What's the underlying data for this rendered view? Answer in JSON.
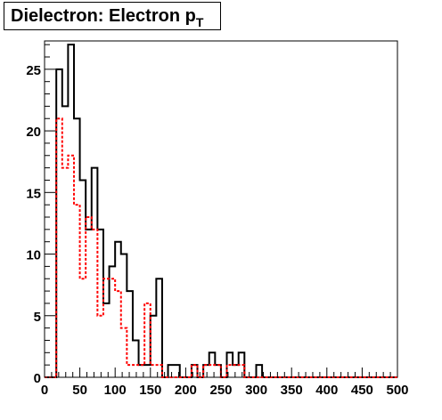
{
  "chart_data": {
    "type": "histogram",
    "title": "Dielectron: Electron p",
    "title_subscript": "T",
    "xlabel": "",
    "ylabel": "",
    "xlim": [
      0,
      500
    ],
    "ylim": [
      0,
      27.3
    ],
    "bin_width": 8.33,
    "x_ticks": [
      0,
      50,
      100,
      150,
      200,
      250,
      300,
      350,
      400,
      450,
      500
    ],
    "y_ticks": [
      0,
      5,
      10,
      15,
      20,
      25
    ],
    "grid": false,
    "legend": "none",
    "series": [
      {
        "style": "solid",
        "color": "#000000",
        "values": [
          0,
          0,
          25,
          22,
          27,
          21,
          16,
          12,
          17,
          12,
          6,
          9,
          11,
          10,
          7,
          3,
          1,
          1,
          5,
          8,
          0,
          1,
          1,
          0,
          0,
          1,
          0,
          1,
          2,
          1,
          0,
          2,
          1,
          2,
          0,
          0,
          1,
          0,
          0,
          0,
          0,
          0,
          0,
          0,
          0,
          0,
          0,
          0,
          0,
          0,
          0,
          0,
          0,
          0,
          0,
          0,
          0,
          0,
          0,
          0
        ]
      },
      {
        "style": "dotted",
        "color": "#ff0000",
        "values": [
          0,
          0,
          21,
          17,
          18,
          14,
          8,
          13,
          12,
          5,
          8,
          8,
          7,
          4,
          1,
          1,
          1,
          6,
          1,
          1,
          0,
          0,
          0,
          0,
          0,
          1,
          0,
          1,
          1,
          1,
          0,
          1,
          1,
          1,
          0,
          0,
          0,
          0,
          0,
          0,
          0,
          0,
          0,
          0,
          0,
          0,
          0,
          0,
          0,
          0,
          0,
          0,
          0,
          0,
          0,
          0,
          0,
          0,
          0,
          0
        ]
      }
    ]
  }
}
